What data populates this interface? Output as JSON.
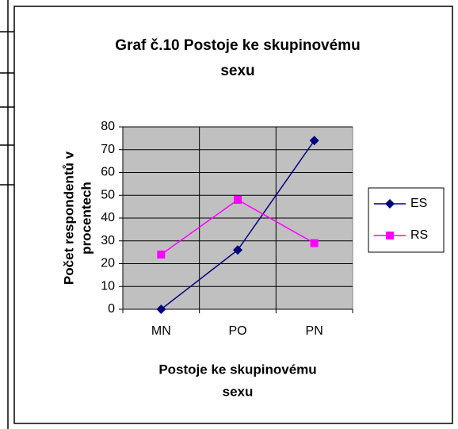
{
  "chart_data": {
    "type": "line",
    "title": [
      "Graf č.10 Postoje ke skupinovému",
      "sexu"
    ],
    "x_label": [
      "Postoje ke skupinovému",
      "sexu"
    ],
    "y_label": [
      "Počet respondentů v",
      "procentech"
    ],
    "categories": [
      "MN",
      "PO",
      "PN"
    ],
    "series": [
      {
        "name": "ES",
        "color": "#000080",
        "marker": "diamond",
        "values": [
          0,
          26,
          74
        ]
      },
      {
        "name": "RS",
        "color": "#ff00ff",
        "marker": "square",
        "values": [
          24,
          48,
          29
        ]
      }
    ],
    "ylim": [
      0,
      80
    ],
    "yticks": [
      0,
      10,
      20,
      30,
      40,
      50,
      60,
      70,
      80
    ],
    "grid": true,
    "legend": "right"
  }
}
